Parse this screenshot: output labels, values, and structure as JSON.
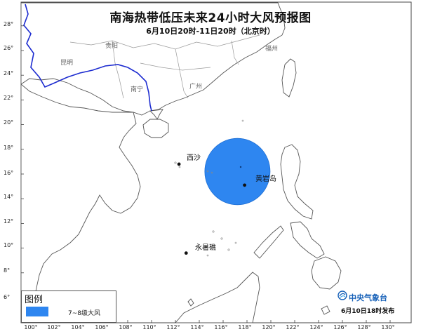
{
  "title": "南海热带低压未来24小时大风预报图",
  "subtitle": "6月10日20时-11日20时（北京时）",
  "colors": {
    "wind_area": "#2e86f0",
    "coast": "#555555",
    "province_border": "#999999",
    "national_border": "#1c2bd0",
    "agency_blue": "#1560b8"
  },
  "axes": {
    "lat_ticks": [
      "6°",
      "8°",
      "10°",
      "12°",
      "14°",
      "16°",
      "18°",
      "20°",
      "22°",
      "24°",
      "26°",
      "28°"
    ],
    "lon_ticks": [
      "100°",
      "102°",
      "104°",
      "106°",
      "108°",
      "110°",
      "112°",
      "114°",
      "116°",
      "118°",
      "120°",
      "122°",
      "124°",
      "126°",
      "128°",
      "130°"
    ]
  },
  "places": {
    "kunming": "昆明",
    "guiyang": "贵阳",
    "nanning": "南宁",
    "guangzhou": "广州",
    "fuzhou": "福州"
  },
  "markers": [
    {
      "name": "西沙",
      "lat": 16.8,
      "lon": 112.3
    },
    {
      "name": "黄岩岛",
      "lat": 15.1,
      "lon": 117.8
    },
    {
      "name": "永暑礁",
      "lat": 9.6,
      "lon": 112.9
    }
  ],
  "wind_area": {
    "label": "7~8级大风",
    "center_lat": 16.2,
    "center_lon": 117.2,
    "lat_radius_deg": 3.2,
    "lon_radius_deg": 3.8
  },
  "legend": {
    "title": "图例",
    "item": "7~8级大风"
  },
  "agency": {
    "icon": "cma-logo-icon",
    "name": "中央气象台",
    "issue": "6月10日18时发布"
  }
}
